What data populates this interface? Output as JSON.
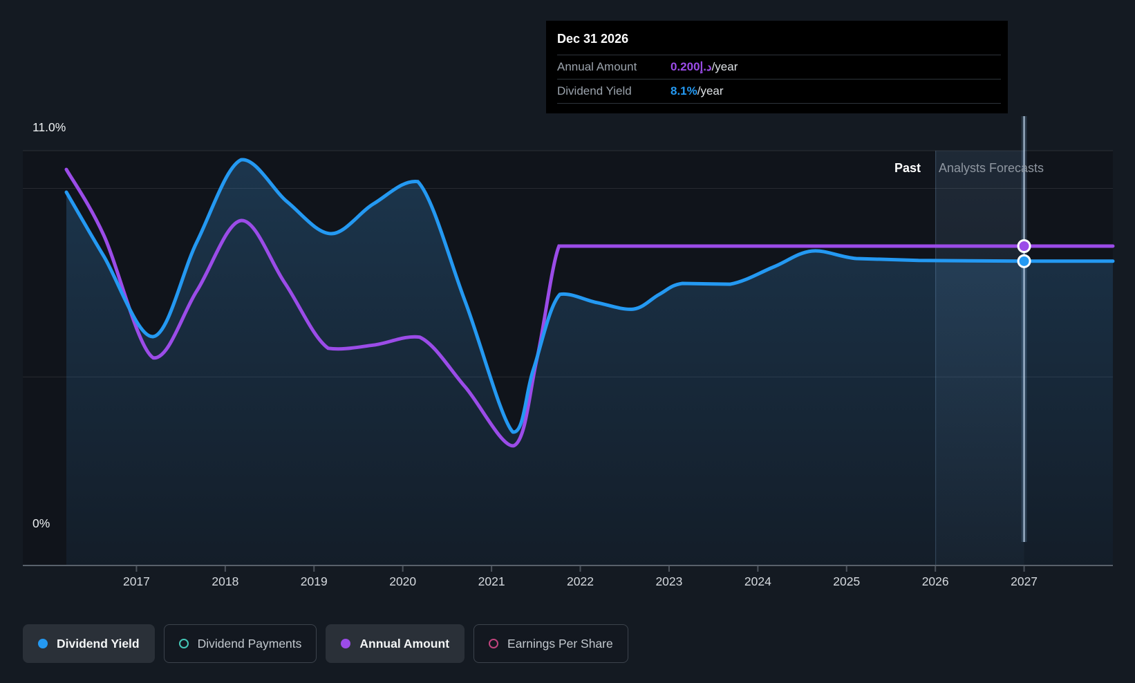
{
  "axis": {
    "y_top_label": "11.0%",
    "y_bottom_label": "0%",
    "years": [
      "2017",
      "2018",
      "2019",
      "2020",
      "2021",
      "2022",
      "2023",
      "2024",
      "2025",
      "2026",
      "2027"
    ]
  },
  "annotations": {
    "past": "Past",
    "forecast": "Analysts Forecasts"
  },
  "tooltip": {
    "date": "Dec 31 2026",
    "rows": [
      {
        "label": "Annual Amount",
        "value": "0.200د.إ",
        "suffix": "/year",
        "color": "#9b4ce8"
      },
      {
        "label": "Dividend Yield",
        "value": "8.1%",
        "suffix": "/year",
        "color": "#2499f2"
      }
    ]
  },
  "legend": [
    {
      "label": "Dividend Yield",
      "active": true,
      "style": "filled",
      "color": "#2499f2"
    },
    {
      "label": "Dividend Payments",
      "active": false,
      "style": "ring",
      "color": "#45c8b8"
    },
    {
      "label": "Annual Amount",
      "active": true,
      "style": "filled",
      "color": "#9b4ce8"
    },
    {
      "label": "Earnings Per Share",
      "active": false,
      "style": "ring",
      "color": "#c2447e"
    }
  ],
  "colors": {
    "background": "#141a22",
    "blue": "#2499f2",
    "purple": "#9b4ce8",
    "teal": "#45c8b8",
    "pink": "#c2447e",
    "tooltip_bg": "#000000"
  },
  "chart_data": {
    "type": "line",
    "title": "Dividend yield history and forecast with annual dividend amount",
    "x_axis": {
      "range": [
        2016.21,
        2028.0
      ],
      "ticks": [
        2017,
        2018,
        2019,
        2020,
        2021,
        2022,
        2023,
        2024,
        2025,
        2026,
        2027
      ]
    },
    "y_axis_percent": {
      "range": [
        0,
        11
      ],
      "gridlines_pct": [
        11,
        10,
        5
      ],
      "label_top": "11.0%",
      "label_bottom": "0%"
    },
    "regions": {
      "past_until_year": 2026,
      "forecast_from_year": 2026,
      "hover_band_years": [
        2026,
        2027
      ],
      "hover_line_year": 2027
    },
    "series": [
      {
        "name": "Dividend Yield",
        "unit": "%",
        "color": "#2499f2",
        "style": "line+area",
        "points": [
          [
            2016.21,
            9.9
          ],
          [
            2016.63,
            8.21
          ],
          [
            2017.19,
            6.07
          ],
          [
            2017.68,
            8.58
          ],
          [
            2018.18,
            10.76
          ],
          [
            2018.7,
            9.64
          ],
          [
            2019.19,
            8.8
          ],
          [
            2019.67,
            9.59
          ],
          [
            2020.17,
            10.18
          ],
          [
            2020.7,
            7.02
          ],
          [
            2021.24,
            3.54
          ],
          [
            2021.47,
            5.19
          ],
          [
            2021.77,
            7.19
          ],
          [
            2022.19,
            6.97
          ],
          [
            2022.6,
            6.8
          ],
          [
            2022.89,
            7.19
          ],
          [
            2023.15,
            7.48
          ],
          [
            2023.69,
            7.46
          ],
          [
            2024.18,
            7.92
          ],
          [
            2024.61,
            8.34
          ],
          [
            2025.11,
            8.14
          ],
          [
            2025.81,
            8.09
          ],
          [
            2027.0,
            8.07
          ],
          [
            2028.0,
            8.07
          ]
        ]
      },
      {
        "name": "Annual Amount",
        "unit": "د.إ/year",
        "color": "#9b4ce8",
        "style": "line",
        "points": [
          [
            2016.21,
            0.248
          ],
          [
            2016.63,
            0.207
          ],
          [
            2017.19,
            0.13
          ],
          [
            2017.68,
            0.172
          ],
          [
            2018.18,
            0.216
          ],
          [
            2018.67,
            0.177
          ],
          [
            2019.16,
            0.136
          ],
          [
            2019.67,
            0.138
          ],
          [
            2020.19,
            0.143
          ],
          [
            2020.7,
            0.112
          ],
          [
            2021.25,
            0.075
          ],
          [
            2021.51,
            0.129
          ],
          [
            2021.76,
            0.2
          ],
          [
            2022.01,
            0.2
          ],
          [
            2027.0,
            0.2
          ],
          [
            2028.0,
            0.2
          ]
        ]
      }
    ],
    "markers": [
      {
        "series": "Dividend Yield",
        "year": 2027,
        "value": 8.07,
        "display": "8.1%/year"
      },
      {
        "series": "Annual Amount",
        "year": 2027,
        "value": 0.2,
        "display": "0.200د.إ/year"
      }
    ]
  }
}
